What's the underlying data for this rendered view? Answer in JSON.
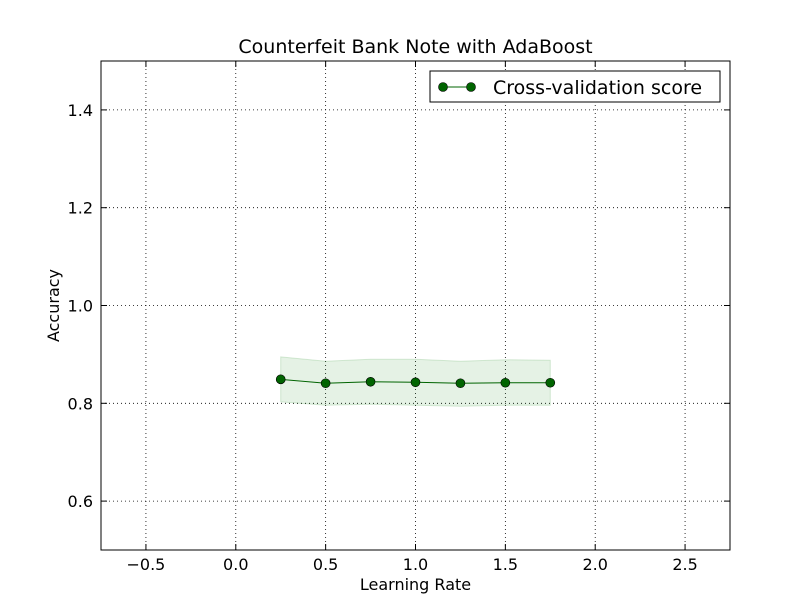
{
  "chart_data": {
    "type": "line",
    "title": "Counterfeit Bank Note with AdaBoost",
    "xlabel": "Learning Rate",
    "ylabel": "Accuracy",
    "xlim": [
      -0.75,
      2.75
    ],
    "ylim": [
      0.5,
      1.5
    ],
    "xticks": [
      "−0.5",
      "0.0",
      "0.5",
      "1.0",
      "1.5",
      "2.0",
      "2.5"
    ],
    "xtick_values": [
      -0.5,
      0.0,
      0.5,
      1.0,
      1.5,
      2.0,
      2.5
    ],
    "yticks": [
      "0.6",
      "0.8",
      "1.0",
      "1.2",
      "1.4"
    ],
    "ytick_values": [
      0.6,
      0.8,
      1.0,
      1.2,
      1.4
    ],
    "grid": true,
    "legend_position": "top-right",
    "series": [
      {
        "name": "Cross-validation score",
        "color": "#006400",
        "band_color": "#008000",
        "x": [
          0.25,
          0.5,
          0.75,
          1.0,
          1.25,
          1.5,
          1.75
        ],
        "values": [
          0.849,
          0.841,
          0.844,
          0.843,
          0.841,
          0.842,
          0.842
        ],
        "upper": [
          0.895,
          0.886,
          0.89,
          0.89,
          0.886,
          0.889,
          0.888
        ],
        "lower": [
          0.803,
          0.796,
          0.798,
          0.796,
          0.794,
          0.796,
          0.796
        ]
      }
    ]
  }
}
